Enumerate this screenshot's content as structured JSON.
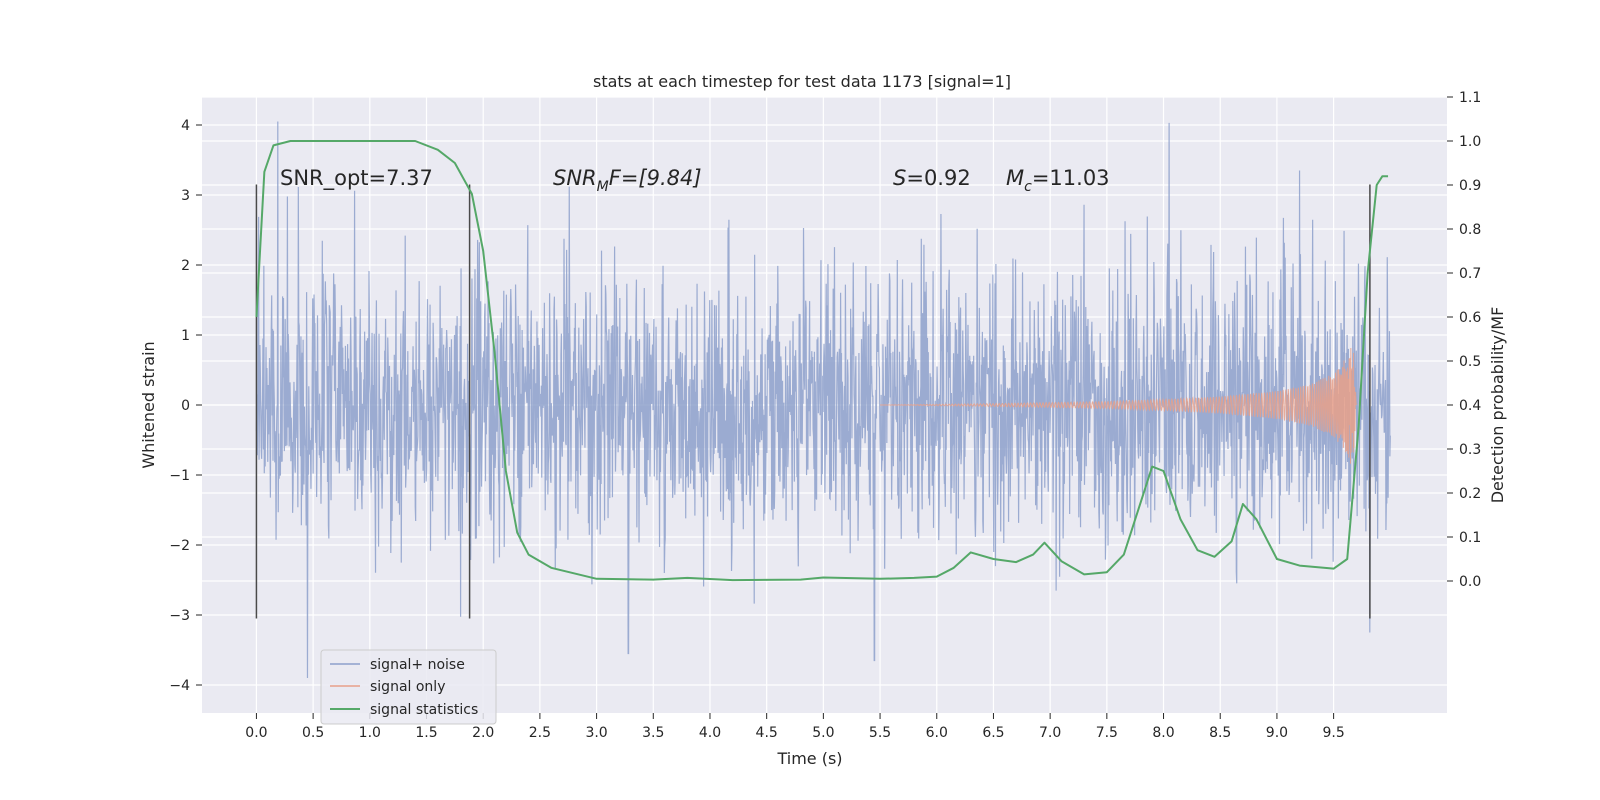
{
  "colors": {
    "background": "#eaeaf2",
    "grid": "#ffffff",
    "signal_noise": "#8da0cb",
    "signal_only": "#e8a08a",
    "signal_statistics": "#55a868",
    "markers": "#4a4a4a"
  },
  "chart_data": {
    "type": "line",
    "title": "stats at each timestep for test data 1173 [signal=1]",
    "xlabel": "Time (s)",
    "ylabel": "Whitened strain",
    "ylabel_right": "Detection probability/MF",
    "xlim": [
      -0.48,
      10.5
    ],
    "ylim": [
      -4.4,
      4.4
    ],
    "ylim_right": [
      -0.3,
      1.1
    ],
    "grid": true,
    "legend_placement": "lower-left",
    "x_ticks": [
      "0.0",
      "0.5",
      "1.0",
      "1.5",
      "2.0",
      "2.5",
      "3.0",
      "3.5",
      "4.0",
      "4.5",
      "5.0",
      "5.5",
      "6.0",
      "6.5",
      "7.0",
      "7.5",
      "8.0",
      "8.5",
      "9.0",
      "9.5"
    ],
    "y_ticks": [
      "4",
      "3",
      "2",
      "1",
      "0",
      "−1",
      "−2",
      "−3",
      "−4"
    ],
    "y_ticks_right": [
      "1.1",
      "1.0",
      "0.9",
      "0.8",
      "0.7",
      "0.6",
      "0.5",
      "0.4",
      "0.3",
      "0.2",
      "0.1",
      "0.0"
    ],
    "annotations": {
      "snr_opt": "SNR_opt=7.37",
      "snr_mf_base": "SNR",
      "snr_mf_sub": "M",
      "snr_mf_rest": "F=[9.84]",
      "s_base": "S",
      "s_rest": "=0.92",
      "mc_base": "M",
      "mc_sub": "c",
      "mc_rest": "=11.03"
    },
    "vertical_markers": [
      {
        "x": 0.0,
        "y_from": -3.05,
        "y_to": 3.15
      },
      {
        "x": 1.88,
        "y_from": -3.05,
        "y_to": 3.15
      },
      {
        "x": 9.82,
        "y_from": -3.05,
        "y_to": 3.15
      }
    ],
    "series": [
      {
        "name": "signal+ noise",
        "style": "dense noise trace, whitened strain between about -3.9 and 4.1 over t = 0 to 10 s",
        "t_range": [
          0,
          10
        ],
        "peak_samples": [
          {
            "x": 0.19,
            "y": 4.05
          },
          {
            "x": 0.45,
            "y": -3.9
          },
          {
            "x": 3.28,
            "y": -3.55
          },
          {
            "x": 5.45,
            "y": -3.65
          },
          {
            "x": 8.05,
            "y": 4.03
          },
          {
            "x": 9.2,
            "y": 3.35
          },
          {
            "x": 9.82,
            "y": -3.25
          }
        ]
      },
      {
        "name": "signal only",
        "style": "chirp with growing amplitude",
        "t_range": [
          5.5,
          9.7
        ],
        "envelope": [
          {
            "x": 5.5,
            "y": 0.0
          },
          {
            "x": 6.5,
            "y": 0.02
          },
          {
            "x": 7.5,
            "y": 0.05
          },
          {
            "x": 8.0,
            "y": 0.08
          },
          {
            "x": 8.5,
            "y": 0.12
          },
          {
            "x": 9.0,
            "y": 0.2
          },
          {
            "x": 9.3,
            "y": 0.3
          },
          {
            "x": 9.5,
            "y": 0.45
          },
          {
            "x": 9.62,
            "y": 0.7
          },
          {
            "x": 9.67,
            "y": 0.95
          },
          {
            "x": 9.7,
            "y": 0.0
          }
        ]
      },
      {
        "name": "signal statistics",
        "axis": "right",
        "points": [
          {
            "x": 0.0,
            "y": 0.6
          },
          {
            "x": 0.07,
            "y": 0.93
          },
          {
            "x": 0.15,
            "y": 0.99
          },
          {
            "x": 0.3,
            "y": 1.0
          },
          {
            "x": 1.4,
            "y": 1.0
          },
          {
            "x": 1.6,
            "y": 0.98
          },
          {
            "x": 1.75,
            "y": 0.95
          },
          {
            "x": 1.9,
            "y": 0.88
          },
          {
            "x": 2.0,
            "y": 0.75
          },
          {
            "x": 2.1,
            "y": 0.52
          },
          {
            "x": 2.2,
            "y": 0.25
          },
          {
            "x": 2.3,
            "y": 0.11
          },
          {
            "x": 2.4,
            "y": 0.06
          },
          {
            "x": 2.6,
            "y": 0.03
          },
          {
            "x": 3.0,
            "y": 0.005
          },
          {
            "x": 3.5,
            "y": 0.003
          },
          {
            "x": 3.8,
            "y": 0.007
          },
          {
            "x": 4.2,
            "y": 0.002
          },
          {
            "x": 4.8,
            "y": 0.003
          },
          {
            "x": 5.0,
            "y": 0.008
          },
          {
            "x": 5.5,
            "y": 0.005
          },
          {
            "x": 5.8,
            "y": 0.007
          },
          {
            "x": 6.0,
            "y": 0.01
          },
          {
            "x": 6.15,
            "y": 0.03
          },
          {
            "x": 6.3,
            "y": 0.065
          },
          {
            "x": 6.5,
            "y": 0.05
          },
          {
            "x": 6.7,
            "y": 0.043
          },
          {
            "x": 6.85,
            "y": 0.06
          },
          {
            "x": 6.95,
            "y": 0.087
          },
          {
            "x": 7.1,
            "y": 0.045
          },
          {
            "x": 7.3,
            "y": 0.015
          },
          {
            "x": 7.5,
            "y": 0.02
          },
          {
            "x": 7.65,
            "y": 0.06
          },
          {
            "x": 7.8,
            "y": 0.18
          },
          {
            "x": 7.9,
            "y": 0.26
          },
          {
            "x": 8.0,
            "y": 0.25
          },
          {
            "x": 8.15,
            "y": 0.14
          },
          {
            "x": 8.3,
            "y": 0.07
          },
          {
            "x": 8.45,
            "y": 0.055
          },
          {
            "x": 8.6,
            "y": 0.09
          },
          {
            "x": 8.7,
            "y": 0.175
          },
          {
            "x": 8.82,
            "y": 0.14
          },
          {
            "x": 9.0,
            "y": 0.05
          },
          {
            "x": 9.2,
            "y": 0.035
          },
          {
            "x": 9.5,
            "y": 0.028
          },
          {
            "x": 9.62,
            "y": 0.05
          },
          {
            "x": 9.72,
            "y": 0.35
          },
          {
            "x": 9.8,
            "y": 0.7
          },
          {
            "x": 9.88,
            "y": 0.9
          },
          {
            "x": 9.93,
            "y": 0.92
          },
          {
            "x": 9.98,
            "y": 0.92
          }
        ]
      }
    ]
  }
}
